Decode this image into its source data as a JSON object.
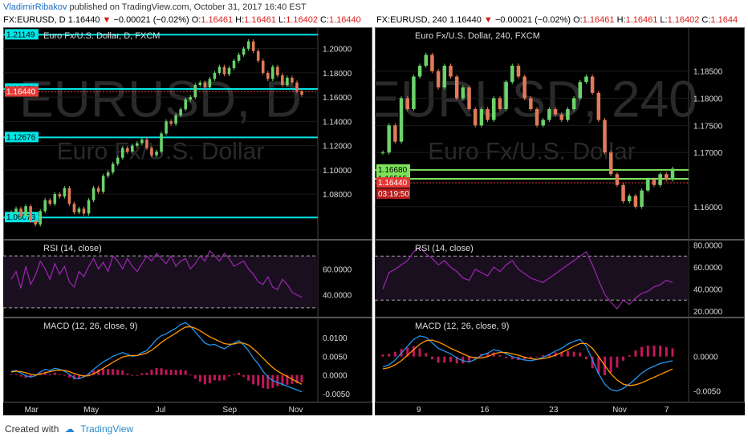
{
  "header": {
    "author": "VladimirRibakov",
    "published": "published on TradingView.com, October 31, 2017 16:40 EST"
  },
  "footer": {
    "created_with": "Created with",
    "brand": "TradingView"
  },
  "chart_data": [
    {
      "type": "line",
      "symbol_line": "FX:EURUSD, D",
      "last": "1.16440",
      "change": "−0.00021 (−0.02%)",
      "O": "1.16461",
      "H": "1.16461",
      "L": "1.16402",
      "C": "1.16440",
      "title": "Euro Fx/U.S. Dollar, D, FXCM",
      "watermark": "EURUSD, D",
      "watermark2": "Euro Fx/U.S. Dollar",
      "ylim": [
        1.045,
        1.215
      ],
      "price_ticks": [
        "1.20000",
        "1.18000",
        "1.16000",
        "1.14000",
        "1.12000",
        "1.10000",
        "1.08000"
      ],
      "price_tick_values": [
        1.2,
        1.18,
        1.16,
        1.14,
        1.12,
        1.1,
        1.08
      ],
      "level_labels": [
        {
          "text": "1.21149",
          "value": 1.21149,
          "color": "#00e5e5"
        },
        {
          "text": "1.16671",
          "value": 1.16671,
          "color": "#00e5e5"
        },
        {
          "text": "1.16440",
          "value": 1.1644,
          "color": "#e53935"
        },
        {
          "text": "1.12676",
          "value": 1.12676,
          "color": "#00e5e5"
        },
        {
          "text": "1.06073",
          "value": 1.06073,
          "color": "#00e5e5"
        }
      ],
      "x_labels": [
        "Mar",
        "May",
        "Jul",
        "Sep",
        "Nov"
      ],
      "x_label_positions": [
        0.09,
        0.28,
        0.5,
        0.72,
        0.93
      ],
      "price": [
        1.065,
        1.068,
        1.062,
        1.07,
        1.058,
        1.055,
        1.066,
        1.075,
        1.072,
        1.08,
        1.078,
        1.085,
        1.072,
        1.065,
        1.068,
        1.064,
        1.075,
        1.085,
        1.082,
        1.095,
        1.098,
        1.105,
        1.11,
        1.118,
        1.115,
        1.12,
        1.122,
        1.125,
        1.118,
        1.112,
        1.115,
        1.13,
        1.14,
        1.138,
        1.145,
        1.15,
        1.158,
        1.16,
        1.17,
        1.172,
        1.168,
        1.175,
        1.18,
        1.185,
        1.179,
        1.184,
        1.19,
        1.195,
        1.2,
        1.206,
        1.198,
        1.19,
        1.18,
        1.175,
        1.185,
        1.178,
        1.17,
        1.176,
        1.172,
        1.165,
        1.162
      ],
      "rsi": {
        "title": "RSI (14, close)",
        "ylim": [
          25,
          80
        ],
        "ticks": [
          "60.0000",
          "40.0000"
        ],
        "tick_values": [
          60,
          40
        ],
        "values": [
          52,
          58,
          45,
          62,
          48,
          55,
          66,
          60,
          52,
          64,
          56,
          62,
          50,
          46,
          58,
          54,
          62,
          68,
          60,
          65,
          58,
          70,
          66,
          60,
          68,
          62,
          58,
          64,
          70,
          66,
          72,
          68,
          64,
          70,
          62,
          66,
          68,
          60,
          64,
          70,
          66,
          74,
          70,
          66,
          72,
          68,
          62,
          64,
          66,
          60,
          56,
          50,
          48,
          54,
          46,
          44,
          52,
          48,
          42,
          40,
          38
        ]
      },
      "macd": {
        "title": "MACD (12, 26, close, 9)",
        "ylim": [
          -0.0065,
          0.0145
        ],
        "ticks": [
          "0.0100",
          "0.0050",
          "0.0000",
          "-0.0050"
        ],
        "tick_values": [
          0.01,
          0.005,
          0,
          -0.005
        ],
        "macd": [
          0.001,
          0.0012,
          0.0005,
          -0.0002,
          -0.0005,
          -0.0002,
          0.0008,
          0.0015,
          0.0012,
          0.0018,
          0.0015,
          0.001,
          0.0002,
          -0.0008,
          -0.001,
          -0.0005,
          0.0003,
          0.0015,
          0.0025,
          0.0035,
          0.0042,
          0.005,
          0.0055,
          0.006,
          0.0055,
          0.005,
          0.0052,
          0.006,
          0.0065,
          0.008,
          0.0095,
          0.0105,
          0.011,
          0.0118,
          0.0125,
          0.0135,
          0.014,
          0.013,
          0.0115,
          0.01,
          0.0085,
          0.008,
          0.0082,
          0.0075,
          0.007,
          0.0078,
          0.0085,
          0.0092,
          0.008,
          0.0065,
          0.0045,
          0.003,
          0.001,
          -0.0005,
          -0.0015,
          -0.002,
          -0.0025,
          -0.003,
          -0.0035,
          -0.004,
          -0.0045
        ],
        "signal": [
          0.0008,
          0.001,
          0.0009,
          0.0006,
          0.0002,
          0.0,
          0.0002,
          0.0006,
          0.0009,
          0.0012,
          0.0013,
          0.0012,
          0.0009,
          0.0004,
          0.0,
          -0.0003,
          -0.0002,
          0.0003,
          0.001,
          0.0018,
          0.0026,
          0.0034,
          0.0041,
          0.0048,
          0.0051,
          0.0052,
          0.0052,
          0.0055,
          0.0059,
          0.0066,
          0.0076,
          0.0087,
          0.0096,
          0.0104,
          0.0112,
          0.0121,
          0.0128,
          0.0129,
          0.0125,
          0.0118,
          0.011,
          0.0102,
          0.0096,
          0.009,
          0.0084,
          0.0082,
          0.0083,
          0.0086,
          0.0085,
          0.008,
          0.007,
          0.0058,
          0.0045,
          0.0032,
          0.002,
          0.001,
          0.0003,
          -0.0004,
          -0.0011,
          -0.0018,
          -0.0025
        ]
      }
    },
    {
      "type": "line",
      "symbol_line": "FX:EURUSD, 240",
      "last": "1.16440",
      "change": "−0.00021 (−0.02%)",
      "O": "1.16461",
      "H": "1.16461",
      "L": "1.16402",
      "C": "1.1644",
      "title": "Euro Fx/U.S. Dollar, 240, FXCM",
      "watermark": "EURUSD, 240",
      "watermark2": "Euro Fx/U.S. Dollar",
      "ylim": [
        1.1545,
        1.1925
      ],
      "price_ticks": [
        "1.18500",
        "1.18000",
        "1.17500",
        "1.17000",
        "1.16000"
      ],
      "price_tick_values": [
        1.185,
        1.18,
        1.175,
        1.17,
        1.16
      ],
      "level_labels": [
        {
          "text": "1.16680",
          "value": 1.1668,
          "color": "#7ee35a"
        },
        {
          "text": "1.16515",
          "value": 1.16515,
          "color": "#7ee35a"
        },
        {
          "text": "1.16440",
          "value": 1.1644,
          "color": "#e53935"
        }
      ],
      "countdown": "03:19:50",
      "x_labels": [
        "9",
        "16",
        "23",
        "Nov",
        "7"
      ],
      "x_label_positions": [
        0.14,
        0.35,
        0.57,
        0.78,
        0.93
      ],
      "price": [
        1.17,
        1.175,
        1.172,
        1.18,
        1.178,
        1.184,
        1.186,
        1.188,
        1.185,
        1.182,
        1.186,
        1.184,
        1.18,
        1.182,
        1.178,
        1.175,
        1.178,
        1.176,
        1.18,
        1.178,
        1.183,
        1.186,
        1.184,
        1.18,
        1.178,
        1.175,
        1.176,
        1.178,
        1.177,
        1.176,
        1.178,
        1.18,
        1.183,
        1.184,
        1.181,
        1.176,
        1.17,
        1.166,
        1.164,
        1.161,
        1.162,
        1.16,
        1.163,
        1.165,
        1.164,
        1.166,
        1.165,
        1.167
      ],
      "rsi": {
        "title": "RSI (14, close)",
        "ylim": [
          17,
          82
        ],
        "ticks": [
          "80.0000",
          "60.0000",
          "40.0000",
          "20.0000"
        ],
        "tick_values": [
          80,
          60,
          40,
          20
        ],
        "values": [
          40,
          55,
          58,
          62,
          66,
          74,
          78,
          72,
          68,
          62,
          66,
          60,
          56,
          50,
          48,
          58,
          55,
          52,
          60,
          56,
          62,
          66,
          58,
          54,
          50,
          48,
          46,
          50,
          54,
          58,
          62,
          66,
          70,
          74,
          62,
          48,
          35,
          28,
          22,
          30,
          26,
          32,
          36,
          38,
          42,
          44,
          48,
          46
        ]
      },
      "macd": {
        "title": "MACD (12, 26, close, 9)",
        "ylim": [
          -0.0062,
          0.0052
        ],
        "ticks": [
          "0.0000",
          "-0.0050"
        ],
        "tick_values": [
          0,
          -0.005
        ],
        "macd": [
          -0.0015,
          -0.0012,
          -0.0005,
          0.0005,
          0.0015,
          0.0025,
          0.003,
          0.0028,
          0.002,
          0.0012,
          0.0008,
          0.0004,
          -0.0002,
          -0.0006,
          -0.0008,
          -0.0004,
          0.0002,
          0.0005,
          0.001,
          0.0008,
          0.0004,
          0.0,
          -0.0003,
          -0.0005,
          -0.0006,
          -0.0004,
          -0.0001,
          0.0003,
          0.0008,
          0.0012,
          0.0018,
          0.0022,
          0.0025,
          0.0015,
          -0.0005,
          -0.0025,
          -0.004,
          -0.0048,
          -0.005,
          -0.0046,
          -0.004,
          -0.0032,
          -0.0024,
          -0.0018,
          -0.0014,
          -0.001,
          -0.0008,
          -0.0006
        ],
        "signal": [
          -0.0018,
          -0.0016,
          -0.0012,
          -0.0006,
          0.0002,
          0.001,
          0.0018,
          0.0023,
          0.0024,
          0.0021,
          0.0017,
          0.0012,
          0.0008,
          0.0004,
          0.0,
          -0.0002,
          -0.0002,
          0.0,
          0.0004,
          0.0006,
          0.0006,
          0.0004,
          0.0002,
          -0.0001,
          -0.0003,
          -0.0004,
          -0.0003,
          -0.0001,
          0.0002,
          0.0006,
          0.001,
          0.0015,
          0.0019,
          0.0019,
          0.0012,
          0.0,
          -0.0013,
          -0.0025,
          -0.0034,
          -0.004,
          -0.0042,
          -0.0041,
          -0.0038,
          -0.0034,
          -0.003,
          -0.0026,
          -0.0022,
          -0.0018
        ]
      }
    }
  ]
}
